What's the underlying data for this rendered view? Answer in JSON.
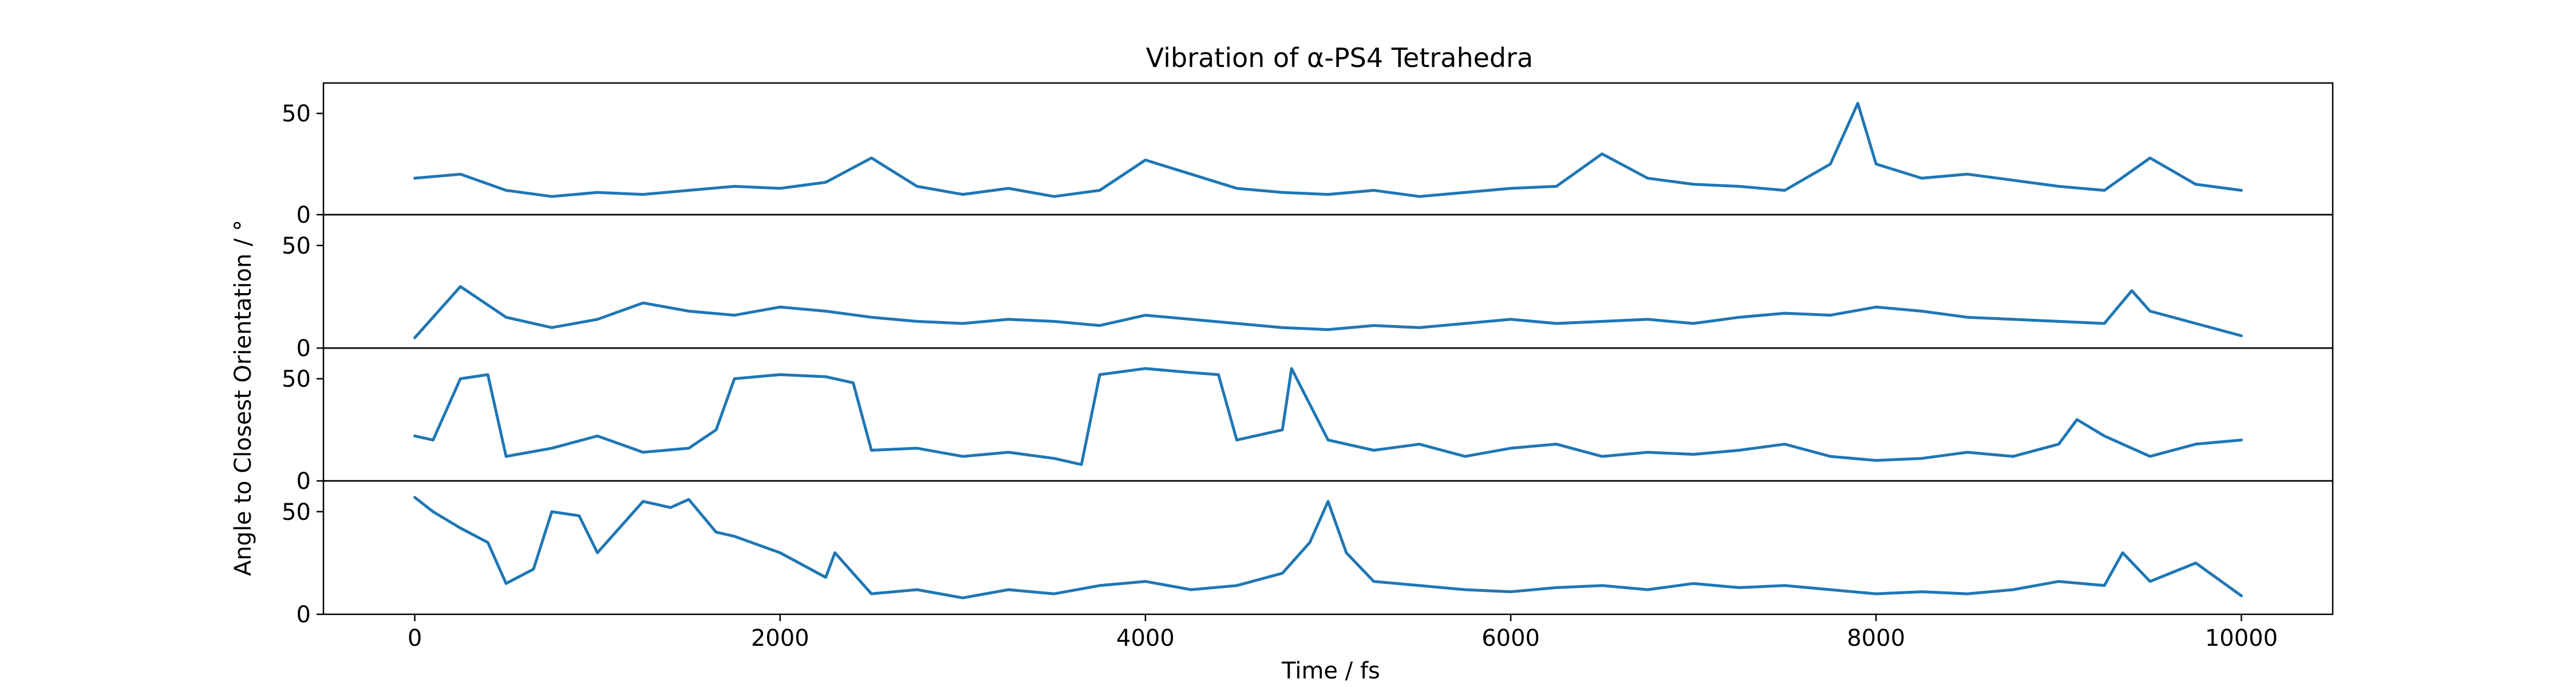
{
  "chart_data": {
    "type": "line",
    "title": "Vibration of α-PS4 Tetrahedra",
    "xlabel": "Time / fs",
    "ylabel": "Angle to Closest Orientation / °",
    "xlim": [
      -500,
      10500
    ],
    "x_ticks": [
      0,
      2000,
      4000,
      6000,
      8000,
      10000
    ],
    "ylim": [
      0,
      65
    ],
    "y_ticks": [
      0,
      50
    ],
    "grid": false,
    "color": "#1f77b4",
    "subplots": [
      {
        "series": [
          {
            "x": [
              0,
              250,
              500,
              750,
              1000,
              1250,
              1500,
              1750,
              2000,
              2250,
              2500,
              2750,
              3000,
              3250,
              3500,
              3750,
              4000,
              4250,
              4500,
              4750,
              5000,
              5250,
              5500,
              5750,
              6000,
              6250,
              6500,
              6750,
              7000,
              7250,
              7500,
              7750,
              7900,
              8000,
              8250,
              8500,
              8750,
              9000,
              9250,
              9500,
              9750,
              10000
            ],
            "y": [
              18,
              20,
              12,
              9,
              11,
              10,
              12,
              14,
              13,
              16,
              28,
              14,
              10,
              13,
              9,
              12,
              27,
              20,
              13,
              11,
              10,
              12,
              9,
              11,
              13,
              14,
              30,
              18,
              15,
              14,
              12,
              25,
              55,
              25,
              18,
              20,
              17,
              14,
              12,
              28,
              15,
              12
            ]
          }
        ]
      },
      {
        "series": [
          {
            "x": [
              0,
              250,
              500,
              750,
              1000,
              1250,
              1500,
              1750,
              2000,
              2250,
              2500,
              2750,
              3000,
              3250,
              3500,
              3750,
              4000,
              4250,
              4500,
              4750,
              5000,
              5250,
              5500,
              5750,
              6000,
              6250,
              6500,
              6750,
              7000,
              7250,
              7500,
              7750,
              8000,
              8250,
              8500,
              8750,
              9000,
              9250,
              9400,
              9500,
              9750,
              10000
            ],
            "y": [
              5,
              30,
              15,
              10,
              14,
              22,
              18,
              16,
              20,
              18,
              15,
              13,
              12,
              14,
              13,
              11,
              16,
              14,
              12,
              10,
              9,
              11,
              10,
              12,
              14,
              12,
              13,
              14,
              12,
              15,
              17,
              16,
              20,
              18,
              15,
              14,
              13,
              12,
              28,
              18,
              12,
              6
            ]
          }
        ]
      },
      {
        "series": [
          {
            "x": [
              0,
              100,
              250,
              400,
              500,
              750,
              1000,
              1250,
              1500,
              1650,
              1750,
              2000,
              2250,
              2400,
              2500,
              2750,
              3000,
              3250,
              3500,
              3650,
              3750,
              4000,
              4250,
              4400,
              4500,
              4750,
              4800,
              5000,
              5250,
              5500,
              5750,
              6000,
              6250,
              6500,
              6750,
              7000,
              7250,
              7500,
              7750,
              8000,
              8250,
              8500,
              8750,
              9000,
              9100,
              9250,
              9500,
              9750,
              10000
            ],
            "y": [
              22,
              20,
              50,
              52,
              12,
              16,
              22,
              14,
              16,
              25,
              50,
              52,
              51,
              48,
              15,
              16,
              12,
              14,
              11,
              8,
              52,
              55,
              53,
              52,
              20,
              25,
              55,
              20,
              15,
              18,
              12,
              16,
              18,
              12,
              14,
              13,
              15,
              18,
              12,
              10,
              11,
              14,
              12,
              18,
              30,
              22,
              12,
              18,
              20
            ]
          }
        ]
      },
      {
        "series": [
          {
            "x": [
              0,
              100,
              250,
              400,
              500,
              650,
              750,
              900,
              1000,
              1250,
              1400,
              1500,
              1650,
              1750,
              2000,
              2250,
              2300,
              2500,
              2750,
              3000,
              3250,
              3500,
              3750,
              4000,
              4250,
              4500,
              4750,
              4900,
              5000,
              5100,
              5250,
              5500,
              5750,
              6000,
              6250,
              6500,
              6750,
              7000,
              7250,
              7500,
              7750,
              8000,
              8250,
              8500,
              8750,
              9000,
              9250,
              9350,
              9500,
              9750,
              10000
            ],
            "y": [
              57,
              50,
              42,
              35,
              15,
              22,
              50,
              48,
              30,
              55,
              52,
              56,
              40,
              38,
              30,
              18,
              30,
              10,
              12,
              8,
              12,
              10,
              14,
              16,
              12,
              14,
              20,
              35,
              55,
              30,
              16,
              14,
              12,
              11,
              13,
              14,
              12,
              15,
              13,
              14,
              12,
              10,
              11,
              10,
              12,
              16,
              14,
              30,
              16,
              25,
              9
            ]
          }
        ]
      }
    ]
  }
}
